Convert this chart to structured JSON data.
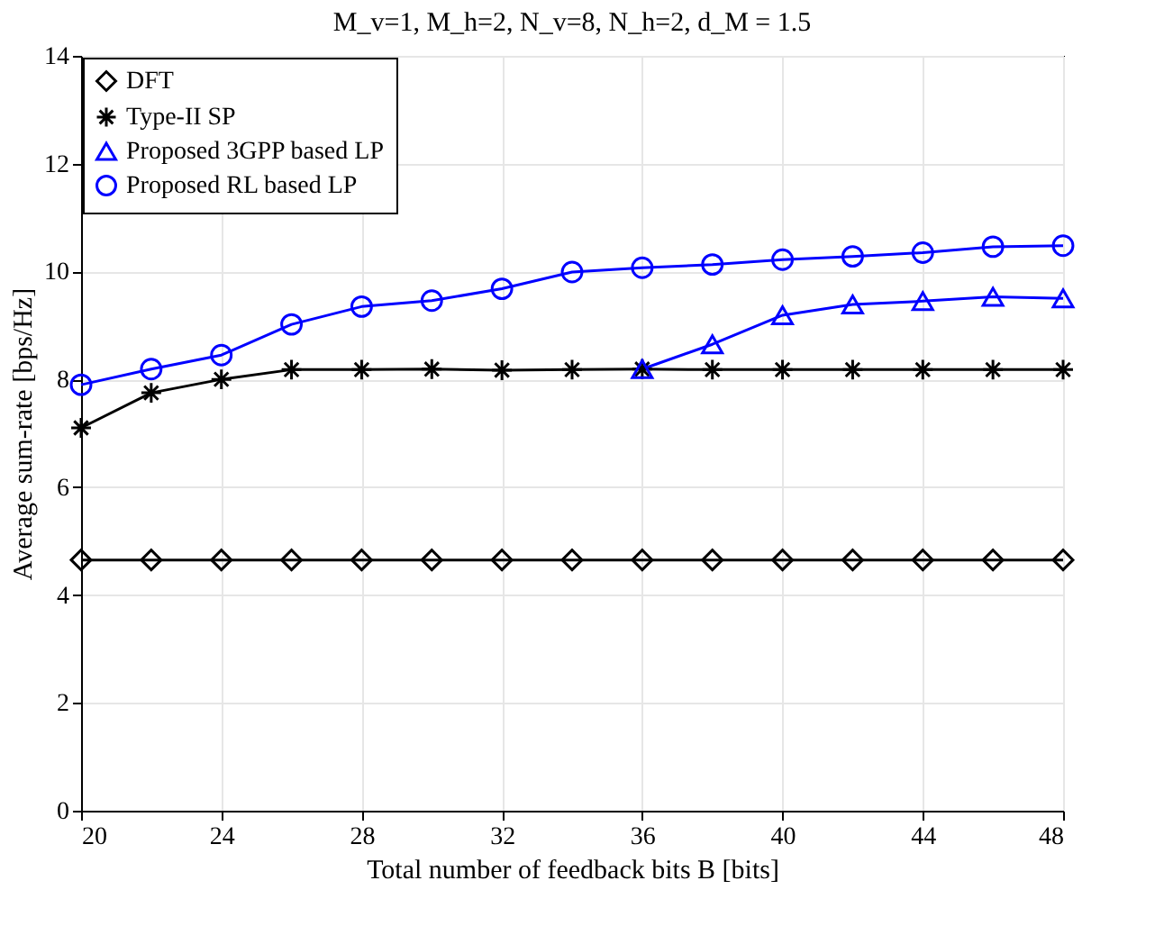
{
  "chart_data": {
    "type": "line",
    "title": "M_v=1, M_h=2, N_v=8, N_h=2, d_M = 1.5",
    "xlabel": "Total number of feedback bits B [bits]",
    "ylabel": "Average sum-rate [bps/Hz]",
    "x": [
      20,
      22,
      24,
      26,
      28,
      30,
      32,
      34,
      36,
      38,
      40,
      42,
      44,
      46,
      48
    ],
    "series": [
      {
        "name": "DFT",
        "color": "#000000",
        "marker": "diamond",
        "values": [
          4.65,
          4.65,
          4.65,
          4.65,
          4.65,
          4.65,
          4.65,
          4.65,
          4.65,
          4.65,
          4.65,
          4.65,
          4.65,
          4.65,
          4.65
        ]
      },
      {
        "name": "Type-II SP",
        "color": "#000000",
        "marker": "cross",
        "values": [
          7.1,
          7.75,
          8.0,
          8.18,
          8.18,
          8.19,
          8.17,
          8.18,
          8.19,
          8.18,
          8.18,
          8.18,
          8.18,
          8.18,
          8.18
        ]
      },
      {
        "name": "Proposed 3GPP based LP",
        "color": "#0000ff",
        "marker": "triangle",
        "values": [
          null,
          null,
          null,
          null,
          null,
          null,
          null,
          null,
          8.19,
          8.65,
          9.19,
          9.39,
          9.45,
          9.53,
          9.5
        ]
      },
      {
        "name": "Proposed RL based LP",
        "color": "#0000ff",
        "marker": "circle",
        "values": [
          7.9,
          8.19,
          8.45,
          9.02,
          9.35,
          9.46,
          9.68,
          9.99,
          10.07,
          10.13,
          10.22,
          10.28,
          10.35,
          10.46,
          10.48
        ]
      }
    ],
    "xlim": [
      20,
      48
    ],
    "xticks": [
      20,
      24,
      28,
      32,
      36,
      40,
      44,
      48
    ],
    "ylim": [
      0,
      14
    ],
    "yticks": [
      0,
      2,
      4,
      6,
      8,
      10,
      12,
      14
    ],
    "grid": true,
    "legend": "top left",
    "line_style": "solid"
  }
}
